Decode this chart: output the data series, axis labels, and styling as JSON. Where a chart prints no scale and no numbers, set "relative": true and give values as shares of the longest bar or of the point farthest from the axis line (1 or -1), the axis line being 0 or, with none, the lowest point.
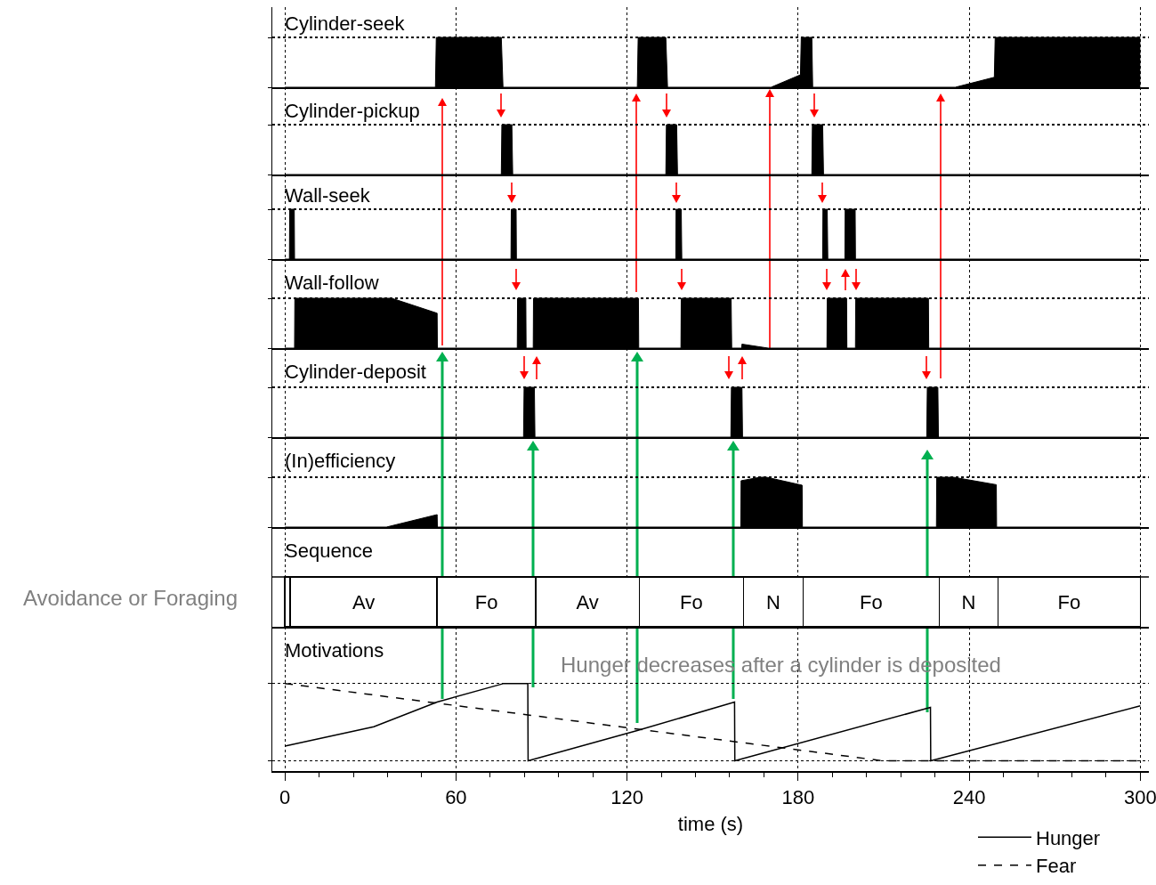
{
  "chart_data": [
    {
      "type": "area",
      "title": "Cylinder-seek",
      "relative": true,
      "xlim": [
        -4.4,
        303
      ],
      "xticks": [
        0,
        60,
        120,
        180,
        240,
        300
      ],
      "tick_labels": false,
      "grid": true,
      "series": [
        {
          "color": "#000000",
          "x": [
            0,
            52.8,
            53.1,
            75.9,
            76.5,
            123.6,
            123.9,
            133.6,
            134.2,
            170.5,
            180.8,
            181.1,
            184.8,
            185.1,
            235.1,
            248.8,
            249.1,
            300
          ],
          "values": [
            0,
            0,
            1,
            1,
            0,
            0,
            1,
            1,
            0,
            0,
            0.25,
            1,
            1,
            0,
            0,
            0.2,
            1,
            1
          ]
        }
      ]
    },
    {
      "type": "area",
      "title": "Cylinder-pickup",
      "relative": true,
      "xlim": [
        -4.4,
        303
      ],
      "xticks": [
        0,
        60,
        120,
        180,
        240,
        300
      ],
      "tick_labels": false,
      "grid": true,
      "series": [
        {
          "color": "#000000",
          "x": [
            0,
            75.9,
            76.1,
            79.6,
            79.9,
            133.6,
            133.8,
            137.4,
            137.7,
            184.8,
            185,
            188.6,
            188.9,
            300
          ],
          "values": [
            0,
            0,
            1,
            1,
            0,
            0,
            1,
            1,
            0,
            0,
            1,
            1,
            0,
            0
          ]
        }
      ]
    },
    {
      "type": "area",
      "title": "Wall-seek",
      "relative": true,
      "xlim": [
        -4.4,
        303
      ],
      "xticks": [
        0,
        60,
        120,
        180,
        240,
        300
      ],
      "tick_labels": false,
      "grid": true,
      "series": [
        {
          "color": "#000000",
          "x": [
            0,
            1.6,
            1.7,
            3.3,
            3.4,
            79.3,
            79.4,
            81.1,
            81.2,
            137.1,
            137.2,
            139,
            139.2,
            188.6,
            188.7,
            190.2,
            190.4,
            196.4,
            196.5,
            200,
            200.1,
            300
          ],
          "values": [
            0,
            0,
            1,
            1,
            0,
            0,
            1,
            1,
            0,
            0,
            1,
            1,
            0,
            0,
            1,
            1,
            0,
            0,
            1,
            1,
            0,
            0
          ]
        }
      ]
    },
    {
      "type": "area",
      "title": "Wall-follow",
      "relative": true,
      "xlim": [
        -4.4,
        303
      ],
      "xticks": [
        0,
        60,
        120,
        180,
        240,
        300
      ],
      "tick_labels": false,
      "grid": true,
      "series": [
        {
          "color": "#000000",
          "x": [
            0,
            3.4,
            3.5,
            37.5,
            53.4,
            53.5,
            81.5,
            81.6,
            84.5,
            84.6,
            87.1,
            87.2,
            124,
            124.1,
            138.9,
            139,
            156.5,
            156.7,
            160.2,
            160.3,
            169.5,
            190.1,
            190.2,
            197,
            197.1,
            200.1,
            200.2,
            225.7,
            225.8,
            300
          ],
          "values": [
            0,
            0,
            1,
            1,
            0.7,
            0,
            0,
            1,
            1,
            0,
            0,
            1,
            1,
            0,
            0,
            1,
            1,
            0,
            0,
            0.08,
            0,
            0,
            1,
            1,
            0,
            0,
            1,
            1,
            0,
            0
          ]
        }
      ]
    },
    {
      "type": "area",
      "title": "Cylinder-deposit",
      "relative": true,
      "xlim": [
        -4.4,
        303
      ],
      "xticks": [
        0,
        60,
        120,
        180,
        240,
        300
      ],
      "tick_labels": false,
      "grid": true,
      "series": [
        {
          "color": "#000000",
          "x": [
            0,
            83.7,
            83.9,
            87.5,
            87.7,
            156.4,
            156.6,
            160.3,
            160.5,
            225.1,
            225.3,
            229,
            229.2,
            300
          ],
          "values": [
            0,
            0,
            1,
            1,
            0,
            0,
            1,
            1,
            0,
            0,
            1,
            1,
            0,
            0
          ]
        }
      ]
    },
    {
      "type": "area",
      "title": "(In)efficiency",
      "relative": true,
      "xlim": [
        -4.4,
        303
      ],
      "xticks": [
        0,
        60,
        120,
        180,
        240,
        300
      ],
      "tick_labels": false,
      "grid": true,
      "series": [
        {
          "color": "#000000",
          "x": [
            0,
            35.6,
            53.4,
            53.5,
            159.9,
            160,
            166.7,
            168.9,
            181.4,
            181.5,
            228.5,
            228.6,
            234.5,
            249.5,
            249.6,
            300
          ],
          "values": [
            0,
            0,
            0.25,
            0,
            0,
            0.93,
            1,
            1,
            0.84,
            0,
            0,
            1,
            1,
            0.85,
            0,
            0
          ]
        }
      ]
    },
    {
      "type": "bar",
      "orientation": "horizontal",
      "stacked": true,
      "title": "Sequence",
      "ylabel": "Avoidance or Foraging",
      "categories": [
        null
      ],
      "xlim": [
        -4.4,
        303
      ],
      "xticks": [
        0,
        60,
        120,
        180,
        240,
        300
      ],
      "tick_labels": false,
      "grid": "x",
      "series": [
        {
          "color": "#ffffff",
          "values": [
            1.9
          ]
        },
        {
          "name": "Av",
          "color": "#ffffff",
          "values": [
            51.5
          ]
        },
        {
          "name": "Fo",
          "color": "#ffffff",
          "values": [
            34.6
          ]
        },
        {
          "name": "Av",
          "color": "#ffffff",
          "values": [
            36.3
          ]
        },
        {
          "name": "Fo",
          "color": "#ffffff",
          "values": [
            36.5
          ]
        },
        {
          "name": "N",
          "color": "#ffffff",
          "values": [
            20.9
          ]
        },
        {
          "name": "Fo",
          "color": "#ffffff",
          "values": [
            47.8
          ]
        },
        {
          "name": "N",
          "color": "#ffffff",
          "values": [
            20.6
          ]
        },
        {
          "name": "Fo",
          "color": "#ffffff",
          "values": [
            49.9
          ]
        }
      ]
    },
    {
      "type": "line",
      "title": "Motivations",
      "xlabel": "time (s)",
      "relative": true,
      "xlim": [
        -4.4,
        303
      ],
      "xticks": [
        0,
        60,
        120,
        180,
        240,
        300
      ],
      "tick_labels": "x",
      "grid": true,
      "legend": "bottom right",
      "annotations": [
        "Hunger decreases after a cylinder is deposited"
      ],
      "series": [
        {
          "name": "Hunger",
          "color": "#000000",
          "line_style": "solid",
          "x": [
            0,
            31.2,
            53.4,
            76.8,
            85.2,
            85.3,
            123.6,
            157.7,
            157.8,
            226.4,
            226.5,
            300
          ],
          "values": [
            0.19,
            0.44,
            0.76,
            1,
            1,
            0,
            0.39,
            0.76,
            0,
            0.69,
            0,
            0.71
          ]
        },
        {
          "name": "Fear",
          "color": "#000000",
          "line_style": "dashed",
          "x": [
            0,
            209.5,
            300
          ],
          "values": [
            1,
            0,
            0
          ]
        }
      ]
    }
  ]
}
